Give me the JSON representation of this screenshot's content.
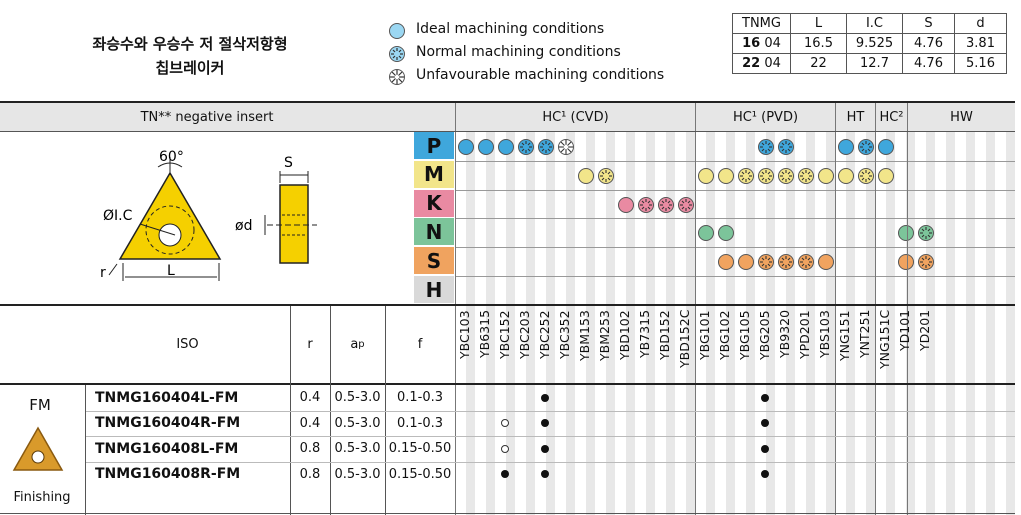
{
  "title": {
    "line1": "좌승수와 우승수 저 절삭저항형",
    "line2": "칩브레이커"
  },
  "legend": [
    {
      "icon": "ideal-icon",
      "label": "Ideal machining conditions"
    },
    {
      "icon": "normal-icon",
      "label": "Normal machining conditions"
    },
    {
      "icon": "unfavourable-icon",
      "label": "Unfavourable machining conditions"
    }
  ],
  "dims": {
    "headers": [
      "TNMG",
      "L",
      "I.C",
      "S",
      "d"
    ],
    "rows": [
      {
        "size": "16",
        "code": "04",
        "L": "16.5",
        "IC": "9.525",
        "S": "4.76",
        "d": "3.81"
      },
      {
        "size": "22",
        "code": "04",
        "L": "22",
        "IC": "12.7",
        "S": "4.76",
        "d": "5.16"
      }
    ]
  },
  "insert_header": "TN** negative insert",
  "drawing": {
    "angle": "60°",
    "ic": "ØI.C",
    "r": "r",
    "l": "L",
    "s": "S",
    "d": "ød"
  },
  "groups": {
    "cvd": "HC¹ (CVD)",
    "pvd": "HC¹ (PVD)",
    "ht": "HT",
    "hc2": "HC²",
    "hw": "HW"
  },
  "materials": [
    {
      "letter": "P",
      "color": "#3fa7dc"
    },
    {
      "letter": "M",
      "color": "#f2e58a"
    },
    {
      "letter": "K",
      "color": "#e98aa2"
    },
    {
      "letter": "N",
      "color": "#7cc49a"
    },
    {
      "letter": "S",
      "color": "#f0a35f"
    },
    {
      "letter": "H",
      "color": "#d9d9d9"
    }
  ],
  "columns": [
    "YBC103",
    "YB6315",
    "YBC152",
    "YBC203",
    "YBC252",
    "YBC352",
    "YBM153",
    "YBM253",
    "YBD102",
    "YB7315",
    "YBD152",
    "YBD152C",
    "YBG101",
    "YBG102",
    "YBG105",
    "YBG205",
    "YB9320",
    "YPD201",
    "YBS103",
    "YNG151",
    "YNT251",
    "YNG151C",
    "YD101",
    "YD201"
  ],
  "table_headers": {
    "iso": "ISO",
    "r": "r",
    "ap": "a",
    "ap_sub": "p",
    "f": "f"
  },
  "breaker": {
    "name": "FM",
    "type": "Finishing"
  },
  "products": [
    {
      "iso": "TNMG160404L-FM",
      "r": "0.4",
      "ap": "0.5-3.0",
      "f": "0.1-0.3"
    },
    {
      "iso": "TNMG160404R-FM",
      "r": "0.4",
      "ap": "0.5-3.0",
      "f": "0.1-0.3"
    },
    {
      "iso": "TNMG160408L-FM",
      "r": "0.8",
      "ap": "0.5-3.0",
      "f": "0.15-0.50"
    },
    {
      "iso": "TNMG160408R-FM",
      "r": "0.8",
      "ap": "0.5-3.0",
      "f": "0.15-0.50"
    }
  ],
  "applicability": {
    "P": {
      "YBC103": "ideal",
      "YB6315": "ideal",
      "YBC152": "ideal",
      "YBC203": "normal",
      "YBC252": "normal",
      "YBC352": "unfav",
      "YBG205": "normal",
      "YB9320": "normal",
      "YNG151": "ideal",
      "YNT251": "normal",
      "YNG151C": "ideal"
    },
    "M": {
      "YBM153": "ideal",
      "YBM253": "normal",
      "YBG101": "ideal",
      "YBG102": "ideal",
      "YBG105": "normal",
      "YBG205": "normal",
      "YB9320": "normal",
      "YPD201": "normal",
      "YBS103": "ideal",
      "YNG151": "ideal",
      "YNT251": "normal",
      "YNG151C": "ideal"
    },
    "K": {
      "YBD102": "ideal",
      "YB7315": "normal",
      "YBD152": "normal",
      "YBD152C": "normal"
    },
    "N": {
      "YBG101": "ideal",
      "YBG102": "ideal",
      "YD101": "ideal",
      "YD201": "normal"
    },
    "S": {
      "YBG102": "ideal",
      "YBG105": "ideal",
      "YBG205": "normal",
      "YB9320": "normal",
      "YPD201": "normal",
      "YBS103": "ideal",
      "YD101": "ideal",
      "YD201": "normal"
    },
    "H": {}
  },
  "product_marks": [
    {
      "YBC252": "recommended",
      "YBG205": "recommended"
    },
    {
      "YBC152": "available",
      "YBC252": "recommended",
      "YBG205": "recommended"
    },
    {
      "YBC152": "available",
      "YBC252": "recommended",
      "YBG205": "recommended"
    },
    {
      "YBC152": "recommended",
      "YBC252": "recommended",
      "YBG205": "recommended"
    }
  ],
  "colors": {
    "header_gray": "#e6e6e6",
    "insert_yellow": "#f5d000",
    "fm_insert": "#d99a2b"
  }
}
